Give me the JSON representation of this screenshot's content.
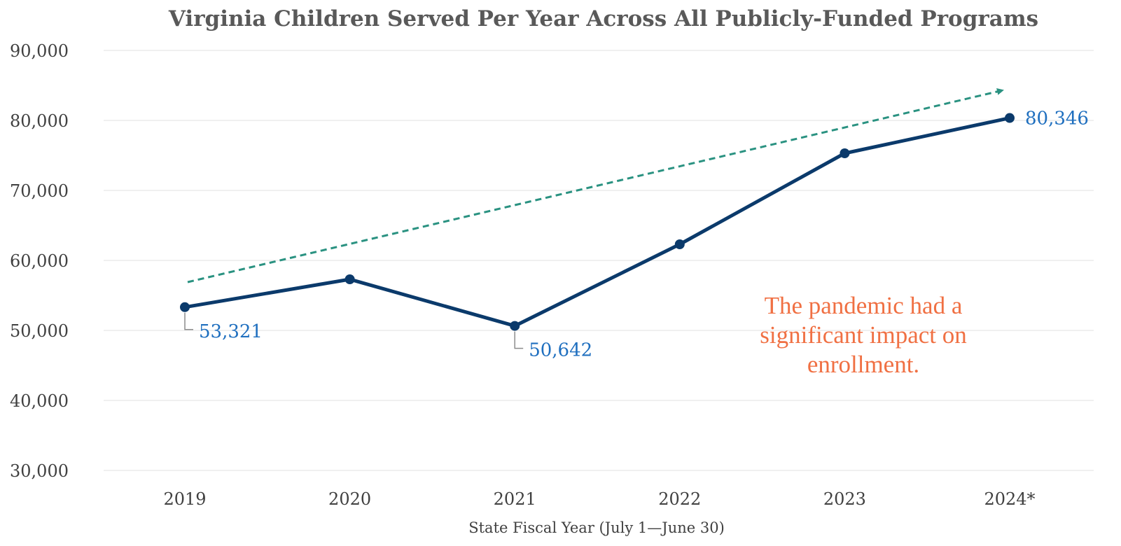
{
  "colors": {
    "line": "#0b3a6b",
    "label": "#1f6fbf",
    "trend": "#2a9281",
    "annotation": "#f07043",
    "leader": "#8c8c8c"
  },
  "chart_data": {
    "type": "line",
    "title": "Virginia Children Served Per Year Across All Publicly-Funded Programs",
    "xlabel": "State Fiscal Year (July 1—June 30)",
    "ylabel": "",
    "categories": [
      "2019",
      "2020",
      "2021",
      "2022",
      "2023",
      "2024*"
    ],
    "series": [
      {
        "values": [
          53321,
          57300,
          50642,
          62300,
          75300,
          80346
        ]
      }
    ],
    "ylim": [
      30000,
      90000
    ],
    "yticks": [
      30000,
      40000,
      50000,
      60000,
      70000,
      80000,
      90000
    ],
    "ytick_labels": [
      "30,000",
      "40,000",
      "50,000",
      "60,000",
      "70,000",
      "80,000",
      "90,000"
    ],
    "grid": true,
    "data_labels": [
      {
        "index": 0,
        "text": "53,321"
      },
      {
        "index": 2,
        "text": "50,642"
      },
      {
        "index": 5,
        "text": "80,346"
      }
    ],
    "trend_arrow": {
      "from": 56900,
      "to": 84300
    },
    "annotation_lines": [
      "The pandemic had a",
      "significant impact on",
      "enrollment."
    ]
  }
}
